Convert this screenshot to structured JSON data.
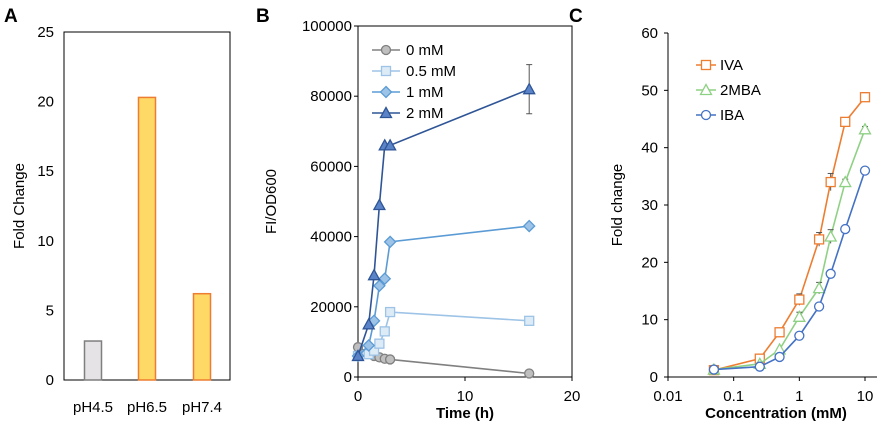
{
  "chart_data": [
    {
      "panel": "A",
      "type": "bar",
      "title": "",
      "xlabel": "",
      "ylabel": "Fold Change",
      "ylim": [
        0,
        25
      ],
      "yticks": [
        "0",
        "5",
        "10",
        "15",
        "20",
        "25"
      ],
      "categories": [
        "pH4.5",
        "pH6.5",
        "pH7.4"
      ],
      "values": [
        2.8,
        20.3,
        6.2
      ],
      "colors": [
        "#e6e3e6",
        "#ffd966",
        "#ffd966"
      ],
      "edge_colors": [
        "#7f7f7f",
        "#ed7d31",
        "#ed7d31"
      ]
    },
    {
      "panel": "B",
      "type": "line",
      "xlabel": "Time (h)",
      "ylabel": "FI/OD600",
      "xlim": [
        0,
        20
      ],
      "ylim": [
        0,
        100000
      ],
      "xticks": [
        "0",
        "10",
        "20"
      ],
      "yticks": [
        "0",
        "20000",
        "40000",
        "60000",
        "80000",
        "100000"
      ],
      "legend_position": "top-left",
      "series": [
        {
          "name": "0 mM",
          "color": "#808080",
          "fill": "#bfbfbf",
          "marker": "circle",
          "x": [
            0,
            1,
            1.5,
            2,
            2.5,
            3,
            16
          ],
          "y": [
            8500,
            7000,
            6000,
            5600,
            5200,
            5000,
            1000
          ]
        },
        {
          "name": "0.5 mM",
          "color": "#9dc3e6",
          "fill": "#ddebf7",
          "marker": "square",
          "x": [
            0,
            1,
            1.5,
            2,
            2.5,
            3,
            16
          ],
          "y": [
            6000,
            6500,
            7500,
            9500,
            13000,
            18500,
            16000
          ]
        },
        {
          "name": "1 mM",
          "color": "#5b9bd5",
          "fill": "#9dc3e6",
          "marker": "diamond",
          "x": [
            0,
            1,
            1.5,
            2,
            2.5,
            3,
            16
          ],
          "y": [
            6000,
            9000,
            16000,
            26000,
            28000,
            38500,
            43000
          ]
        },
        {
          "name": "2 mM",
          "color": "#2f5597",
          "fill": "#5b84c8",
          "marker": "triangle",
          "x": [
            0,
            1,
            1.5,
            2,
            2.5,
            3,
            16
          ],
          "y": [
            6000,
            15000,
            29000,
            49000,
            66000,
            66000,
            82000
          ],
          "error": [
            0,
            0,
            0,
            0,
            0,
            0,
            7000
          ]
        }
      ]
    },
    {
      "panel": "C",
      "type": "line",
      "xscale": "log",
      "xlabel": "Concentration (mM)",
      "ylabel": "Fold change",
      "xlim": [
        0.01,
        10
      ],
      "ylim": [
        0,
        60
      ],
      "xticks": [
        "0.01",
        "0.1",
        "1",
        "10"
      ],
      "yticks": [
        "0",
        "10",
        "20",
        "30",
        "40",
        "50",
        "60"
      ],
      "legend_position": "top-left",
      "series": [
        {
          "name": "IVA",
          "color": "#ed7d31",
          "marker": "square",
          "x": [
            0.05,
            0.25,
            0.5,
            1,
            2,
            3,
            5,
            10
          ],
          "y": [
            1.2,
            3.2,
            7.8,
            13.5,
            24,
            34,
            44.5,
            48.8
          ],
          "error": [
            0,
            0.5,
            0.5,
            1,
            1.2,
            1.5,
            0.5,
            0.8
          ]
        },
        {
          "name": "2MBA",
          "color": "#8fd184",
          "marker": "triangle",
          "x": [
            0.05,
            0.25,
            0.5,
            1,
            2,
            3,
            5,
            10
          ],
          "y": [
            1.3,
            2.3,
            4.8,
            10.5,
            15.5,
            24.5,
            34,
            43.2
          ],
          "error": [
            0,
            0,
            0,
            0.8,
            1,
            1.2,
            0.5,
            0.5
          ]
        },
        {
          "name": "IBA",
          "color": "#4472c4",
          "marker": "circle",
          "x": [
            0.05,
            0.25,
            0.5,
            1,
            2,
            3,
            5,
            10
          ],
          "y": [
            1.3,
            1.8,
            3.5,
            7.2,
            12.3,
            18,
            25.8,
            36
          ],
          "error": [
            0,
            0,
            0,
            0,
            0,
            0,
            0,
            0
          ]
        }
      ]
    }
  ],
  "panels": {
    "a": "A",
    "b": "B",
    "c": "C"
  }
}
